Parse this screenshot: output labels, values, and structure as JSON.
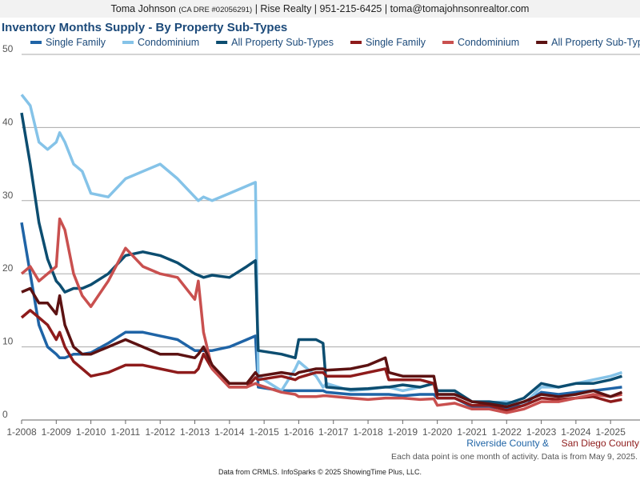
{
  "header": {
    "name": "Toma Johnson",
    "license": "(CA DRE #02056291)",
    "details": "| Rise Realty | 951-215-6425 | toma@tomajohnsonrealtor.com"
  },
  "chart_data": {
    "type": "line",
    "title": "Inventory Months Supply - By Property Sub-Types",
    "x": [
      2008.0,
      2008.25,
      2008.5,
      2008.75,
      2009.0,
      2009.1,
      2009.25,
      2009.5,
      2009.75,
      2010.0,
      2010.5,
      2011.0,
      2011.5,
      2012.0,
      2012.5,
      2013.0,
      2013.1,
      2013.25,
      2013.5,
      2014.0,
      2014.5,
      2014.75,
      2014.83,
      2015.5,
      2015.9,
      2016.0,
      2016.5,
      2016.7,
      2016.8,
      2017.5,
      2018.0,
      2018.5,
      2018.6,
      2019.0,
      2019.5,
      2019.9,
      2020.0,
      2020.5,
      2021.0,
      2021.5,
      2022.0,
      2022.5,
      2023.0,
      2023.5,
      2024.0,
      2024.5,
      2025.0,
      2025.33
    ],
    "series": [
      {
        "name": "Single Family",
        "color": "#1f64a6",
        "values": [
          27,
          20,
          13,
          10,
          9,
          8.5,
          8.5,
          9,
          9,
          9.2,
          10.5,
          12,
          12,
          11.5,
          11,
          9.5,
          9.5,
          9.5,
          9.5,
          10,
          11,
          11.5,
          4.5,
          4,
          4,
          4,
          4,
          4,
          3.8,
          3.5,
          3.5,
          3.5,
          3.5,
          3.3,
          3.5,
          3.5,
          3,
          3,
          1.8,
          1.8,
          1.5,
          2.2,
          3.8,
          3.5,
          3.8,
          4,
          4.3,
          4.5
        ]
      },
      {
        "name": "Condominium",
        "color": "#85c3e8",
        "values": [
          44.5,
          43,
          38,
          37,
          38,
          39.3,
          38,
          35,
          34,
          31,
          30.5,
          33,
          34,
          35,
          33,
          30.5,
          30,
          30.5,
          30,
          31,
          32,
          32.5,
          6,
          4,
          7,
          8,
          6,
          4.5,
          5,
          4,
          4.2,
          4.5,
          4.5,
          4,
          4.5,
          5,
          3.5,
          3.5,
          2.5,
          2.4,
          2.5,
          2.2,
          4.5,
          4.5,
          5,
          5.5,
          6,
          6.5
        ]
      },
      {
        "name": "All Property Sub-Types",
        "color": "#0c4d70",
        "values": [
          42,
          35,
          27,
          22,
          19,
          18.5,
          17.5,
          18,
          18,
          18.5,
          20,
          22.5,
          23,
          22.5,
          21.5,
          20,
          19.8,
          19.5,
          19.8,
          19.5,
          21,
          21.8,
          9.5,
          9,
          8.5,
          11,
          11,
          10.5,
          4.5,
          4.2,
          4.3,
          4.5,
          4.5,
          4.8,
          4.5,
          5,
          4,
          4,
          2.5,
          2.5,
          2.2,
          3,
          5,
          4.5,
          5,
          5,
          5.5,
          6
        ]
      },
      {
        "name": "Single Family",
        "color": "#8e1b1b",
        "values": [
          14,
          15,
          14,
          13,
          11,
          12,
          10,
          8,
          7,
          6,
          6.5,
          7.5,
          7.5,
          7,
          6.5,
          6.5,
          7,
          9,
          7,
          4.5,
          4.5,
          5.8,
          5.5,
          6,
          5.5,
          5.8,
          6.5,
          6.5,
          6,
          6,
          6.5,
          7,
          5.5,
          5.5,
          5.5,
          5,
          3,
          3,
          2,
          2,
          1.3,
          2,
          3,
          2.8,
          3,
          3.2,
          2.5,
          2.8
        ]
      },
      {
        "name": "Condominium",
        "color": "#c9504f",
        "values": [
          20,
          21,
          19,
          20,
          21,
          27.5,
          26,
          20,
          17,
          15.5,
          19,
          23.5,
          21,
          20,
          19.5,
          16.5,
          19,
          12,
          7,
          4.5,
          4.5,
          5,
          4.8,
          3.8,
          3.5,
          3.2,
          3.2,
          3.3,
          3.3,
          3,
          2.8,
          3,
          3,
          3,
          2.8,
          2.9,
          2,
          2.3,
          1.5,
          1.5,
          1,
          1.5,
          2.5,
          2.5,
          3,
          3.5,
          3.2,
          3.5
        ]
      },
      {
        "name": "All Property Sub-Types",
        "color": "#5c1212",
        "values": [
          17.5,
          18,
          16,
          16,
          14.5,
          17,
          13,
          10,
          9,
          9,
          10,
          11,
          10,
          9,
          9,
          8.5,
          9,
          10,
          7.5,
          5,
          5,
          6.5,
          6,
          6.5,
          6.2,
          6.5,
          7,
          7,
          6.8,
          7,
          7.5,
          8.5,
          6.5,
          6,
          6,
          6,
          3.5,
          3.5,
          2.5,
          2.2,
          1.8,
          2.5,
          3.5,
          3.2,
          3.5,
          4,
          3.2,
          3.8
        ]
      }
    ],
    "xlim": [
      2008,
      2025.85
    ],
    "xticks": [
      {
        "value": 2008,
        "label": "1-2008"
      },
      {
        "value": 2009,
        "label": "1-2009"
      },
      {
        "value": 2010,
        "label": "1-2010"
      },
      {
        "value": 2011,
        "label": "1-2011"
      },
      {
        "value": 2012,
        "label": "1-2012"
      },
      {
        "value": 2013,
        "label": "1-2013"
      },
      {
        "value": 2014,
        "label": "1-2014"
      },
      {
        "value": 2015,
        "label": "1-2015"
      },
      {
        "value": 2016,
        "label": "1-2016"
      },
      {
        "value": 2017,
        "label": "1-2017"
      },
      {
        "value": 2018,
        "label": "1-2018"
      },
      {
        "value": 2019,
        "label": "1-2019"
      },
      {
        "value": 2020,
        "label": "1-2020"
      },
      {
        "value": 2021,
        "label": "1-2021"
      },
      {
        "value": 2022,
        "label": "1-2022"
      },
      {
        "value": 2023,
        "label": "1-2023"
      },
      {
        "value": 2024,
        "label": "1-2024"
      },
      {
        "value": 2025,
        "label": "1-2025"
      }
    ],
    "ylim": [
      0,
      50
    ],
    "yticks": [
      0,
      10,
      20,
      30,
      40,
      50
    ],
    "grid": true,
    "regions": [
      {
        "label": "Riverside County &",
        "color": "#1f64a6"
      },
      {
        "label": "San Diego County",
        "color": "#8e1b1b"
      }
    ],
    "note": "Each data point is one month of activity. Data is from May 9, 2025.",
    "source": "Data from CRMLS. InfoSparks © 2025 ShowingTime Plus, LLC."
  }
}
